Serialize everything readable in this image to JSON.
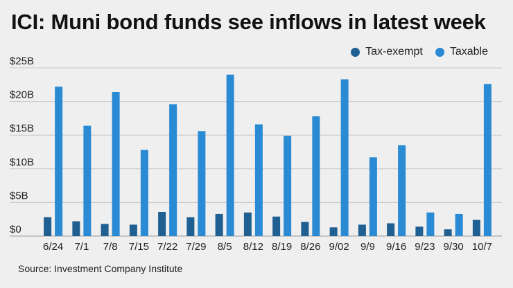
{
  "title": "ICI: Muni bond funds see inflows in latest week",
  "source": "Source: Investment Company Institute",
  "colors": {
    "tax_exempt": "#1f5f92",
    "taxable": "#2a8ad3",
    "grid": "#c8c8c8",
    "background": "#efefef"
  },
  "chart_data": {
    "type": "bar",
    "title": "ICI: Muni bond funds see inflows in latest week",
    "xlabel": "",
    "ylabel": "",
    "ylim": [
      0,
      25
    ],
    "yticks": [
      0,
      5,
      10,
      15,
      20,
      25
    ],
    "ytick_labels": [
      "$0",
      "$5B",
      "$10B",
      "$15B",
      "$20B",
      "$25B"
    ],
    "legend_position": "top-right",
    "categories": [
      "6/24",
      "7/1",
      "7/8",
      "7/15",
      "7/22",
      "7/29",
      "8/5",
      "8/12",
      "8/19",
      "8/26",
      "9/02",
      "9/9",
      "9/16",
      "9/23",
      "9/30",
      "10/7"
    ],
    "series": [
      {
        "name": "Tax-exempt",
        "color": "#1f5f92",
        "values": [
          2.8,
          2.2,
          1.8,
          1.7,
          3.6,
          2.8,
          3.3,
          3.5,
          2.9,
          2.1,
          1.3,
          1.7,
          1.9,
          1.4,
          1.0,
          2.4
        ]
      },
      {
        "name": "Taxable",
        "color": "#2a8ad3",
        "values": [
          22.2,
          16.4,
          21.4,
          12.8,
          19.6,
          15.6,
          24.0,
          16.6,
          14.9,
          17.8,
          23.3,
          11.7,
          13.5,
          3.5,
          3.3,
          22.6
        ]
      }
    ]
  }
}
